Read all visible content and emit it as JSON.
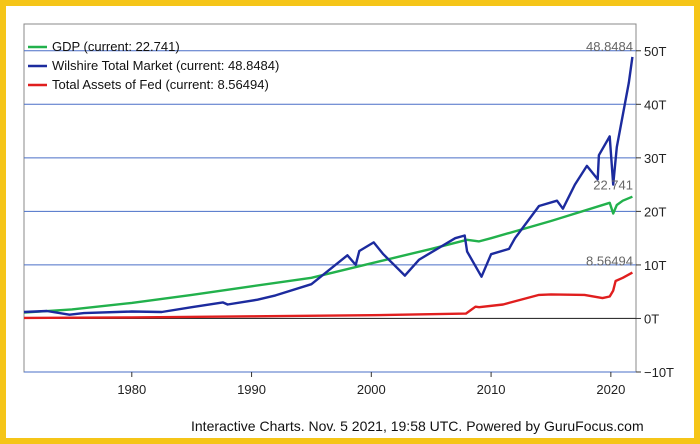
{
  "footer": "Interactive Charts. Nov. 5 2021, 19:58 UTC. Powered by GuruFocus.com",
  "chart_data": {
    "type": "line",
    "title": "",
    "xlabel": "",
    "ylabel": "",
    "xlim": [
      1971,
      2022.1
    ],
    "ylim": [
      -10,
      55
    ],
    "x_ticks": [
      1980,
      1990,
      2000,
      2010,
      2020
    ],
    "y_ticks": [
      {
        "value": 50,
        "label": "50T"
      },
      {
        "value": 40,
        "label": "40T"
      },
      {
        "value": 30,
        "label": "30T"
      },
      {
        "value": 20,
        "label": "20T"
      },
      {
        "value": 10,
        "label": "10T"
      },
      {
        "value": 0,
        "label": "0T"
      },
      {
        "value": -10,
        "label": "−10T"
      }
    ],
    "grid": true,
    "legend_position": "top-left",
    "series": [
      {
        "name": "GDP (current: 22.741)",
        "color": "#22b14c",
        "end_label": "22.741",
        "x": [
          1971,
          1975,
          1980,
          1985,
          1990,
          1995,
          2000,
          2005,
          2008,
          2009,
          2010,
          2015,
          2019.9,
          2020.2,
          2020.5,
          2021,
          2021.8
        ],
        "y": [
          1.1,
          1.7,
          2.9,
          4.4,
          6.0,
          7.6,
          10.3,
          13.0,
          14.7,
          14.4,
          15.0,
          18.2,
          21.6,
          19.6,
          21.2,
          22.0,
          22.741
        ]
      },
      {
        "name": "Wilshire Total Market (current: 48.8484)",
        "color": "#1c2b9e",
        "end_label": "48.8484",
        "x": [
          1971,
          1972.9,
          1974.8,
          1976,
          1980,
          1982.5,
          1985,
          1987.6,
          1988,
          1990.5,
          1992,
          1995,
          1998,
          1998.7,
          1999,
          2000.2,
          2001,
          2002.8,
          2004,
          2007,
          2007.8,
          2008,
          2009.2,
          2010,
          2011.5,
          2012,
          2013,
          2014,
          2015.5,
          2016,
          2017,
          2018,
          2018.9,
          2019,
          2019.9,
          2020.2,
          2020.5,
          2021,
          2021.5,
          2021.8
        ],
        "y": [
          1.2,
          1.4,
          0.7,
          1.0,
          1.3,
          1.2,
          2.1,
          3.0,
          2.6,
          3.5,
          4.3,
          6.4,
          11.8,
          10.0,
          12.6,
          14.2,
          12.0,
          8.0,
          11.0,
          15.0,
          15.5,
          12.5,
          7.8,
          12.0,
          13.0,
          15.0,
          18.0,
          21.0,
          22.0,
          20.5,
          25.0,
          28.5,
          26.0,
          30.5,
          34.0,
          25.0,
          32.0,
          38.0,
          44.0,
          48.8484
        ]
      },
      {
        "name": "Total Assets of Fed (current: 8.56494)",
        "color": "#e01e1e",
        "end_label": "8.56494",
        "x": [
          1971,
          1980,
          1990,
          2000,
          2007.9,
          2008.7,
          2009,
          2011,
          2011.5,
          2014,
          2015,
          2017.8,
          2019.3,
          2019.9,
          2020.2,
          2020.4,
          2021,
          2021.8
        ],
        "y": [
          0.1,
          0.2,
          0.4,
          0.6,
          0.9,
          2.2,
          2.1,
          2.6,
          2.9,
          4.4,
          4.5,
          4.4,
          3.8,
          4.1,
          5.2,
          7.0,
          7.6,
          8.56494
        ]
      }
    ]
  }
}
